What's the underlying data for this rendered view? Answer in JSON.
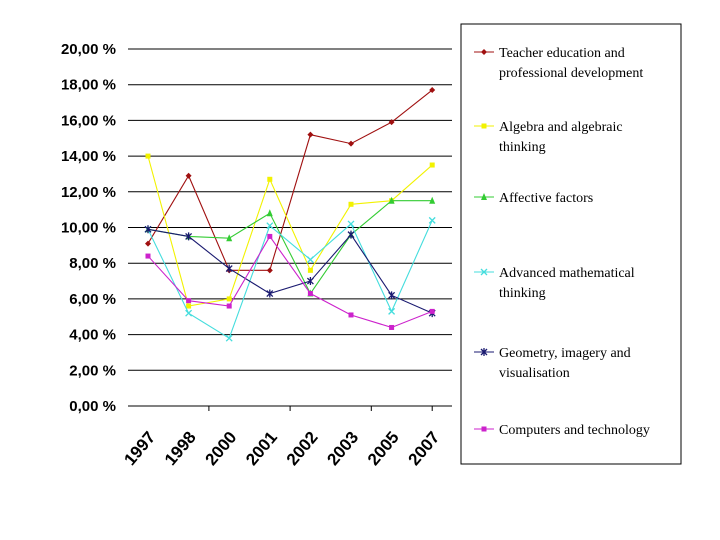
{
  "chart_data": {
    "type": "line",
    "title": "",
    "xlabel": "",
    "ylabel": "",
    "categories": [
      "1997",
      "1998",
      "2000",
      "2001",
      "2002",
      "2003",
      "2005",
      "2007"
    ],
    "y_tick_labels": [
      "0,00 %",
      "2,00 %",
      "4,00 %",
      "6,00 %",
      "8,00 %",
      "10,00 %",
      "12,00 %",
      "14,00 %",
      "16,00 %",
      "18,00 %",
      "20,00 %"
    ],
    "ylim": [
      0,
      20
    ],
    "legend_position": "right",
    "series": [
      {
        "name": "Teacher education and professional development",
        "legend_lines": [
          "Teacher education and",
          "professional development"
        ],
        "color": "#a01010",
        "marker": "diamond",
        "values": [
          9.1,
          12.9,
          7.6,
          7.6,
          15.2,
          14.7,
          15.9,
          17.7
        ]
      },
      {
        "name": "Algebra and algebraic thinking",
        "legend_lines": [
          "Algebra and algebraic",
          "thinking"
        ],
        "color": "#f2f200",
        "marker": "square",
        "values": [
          14.0,
          5.6,
          6.0,
          12.7,
          7.6,
          11.3,
          11.5,
          13.5
        ]
      },
      {
        "name": "Affective factors",
        "legend_lines": [
          "Affective factors"
        ],
        "color": "#33cc33",
        "marker": "triangle",
        "values": [
          9.9,
          9.5,
          9.4,
          10.8,
          6.3,
          9.6,
          11.5,
          11.5
        ]
      },
      {
        "name": "Advanced mathematical thinking",
        "legend_lines": [
          "Advanced mathematical",
          "thinking"
        ],
        "color": "#44dddd",
        "marker": "x",
        "values": [
          9.9,
          5.2,
          3.8,
          10.1,
          8.2,
          10.2,
          5.3,
          10.4
        ]
      },
      {
        "name": "Geometry, imagery and visualisation",
        "legend_lines": [
          "Geometry, imagery and",
          "visualisation"
        ],
        "color": "#1a1a70",
        "marker": "star",
        "values": [
          9.9,
          9.5,
          7.7,
          6.3,
          7.0,
          9.6,
          6.2,
          5.2
        ]
      },
      {
        "name": "Computers and technology",
        "legend_lines": [
          "Computers and technology"
        ],
        "color": "#cc22cc",
        "marker": "square",
        "values": [
          8.4,
          5.9,
          5.6,
          9.5,
          6.3,
          5.1,
          4.4,
          5.3
        ]
      }
    ]
  }
}
